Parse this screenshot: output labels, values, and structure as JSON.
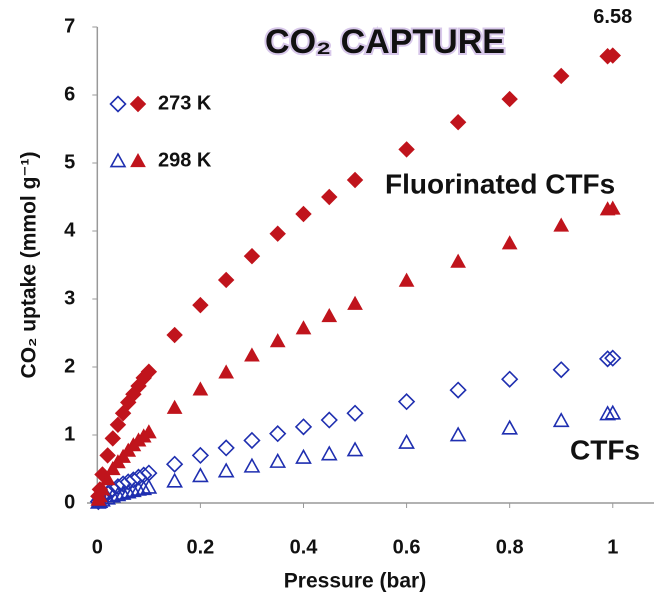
{
  "chart_data": {
    "type": "scatter",
    "title": "CO₂ CAPTURE",
    "title_color": "#7030a0",
    "xlabel": "Pressure (bar)",
    "ylabel": "CO₂ uptake (mmol g⁻¹)",
    "xlim": [
      -0.02,
      1.08
    ],
    "ylim": [
      0,
      7
    ],
    "xticks": [
      0,
      0.2,
      0.4,
      0.6,
      0.8,
      1
    ],
    "yticks": [
      0,
      1,
      2,
      3,
      4,
      5,
      6,
      7
    ],
    "legend": "upper left",
    "x": [
      0.002,
      0.005,
      0.01,
      0.02,
      0.03,
      0.04,
      0.05,
      0.06,
      0.07,
      0.08,
      0.09,
      0.1,
      0.15,
      0.2,
      0.25,
      0.3,
      0.35,
      0.4,
      0.45,
      0.5,
      0.6,
      0.7,
      0.8,
      0.9,
      0.99,
      1.0
    ],
    "series": [
      {
        "name": "273 K",
        "marker": "diamond",
        "sets": [
          {
            "color": "#1f2fb0",
            "filled": false,
            "values": [
              0.02,
              0.05,
              0.08,
              0.14,
              0.2,
              0.24,
              0.28,
              0.31,
              0.34,
              0.38,
              0.41,
              0.44,
              0.57,
              0.7,
              0.81,
              0.92,
              1.02,
              1.12,
              1.22,
              1.32,
              1.49,
              1.66,
              1.82,
              1.96,
              2.12,
              2.13
            ]
          },
          {
            "color": "#c0141c",
            "filled": true,
            "values": [
              0.1,
              0.2,
              0.42,
              0.7,
              0.95,
              1.15,
              1.32,
              1.48,
              1.6,
              1.72,
              1.84,
              1.93,
              2.47,
              2.91,
              3.28,
              3.63,
              3.96,
              4.25,
              4.5,
              4.75,
              5.2,
              5.6,
              5.94,
              6.28,
              6.57,
              6.58
            ]
          }
        ]
      },
      {
        "name": "298 K",
        "marker": "triangle",
        "sets": [
          {
            "color": "#1f2fb0",
            "filled": false,
            "values": [
              0.01,
              0.02,
              0.04,
              0.07,
              0.1,
              0.12,
              0.14,
              0.16,
              0.18,
              0.2,
              0.21,
              0.23,
              0.32,
              0.4,
              0.47,
              0.54,
              0.61,
              0.67,
              0.72,
              0.78,
              0.89,
              1.0,
              1.1,
              1.21,
              1.31,
              1.32
            ]
          },
          {
            "color": "#c0141c",
            "filled": true,
            "values": [
              0.05,
              0.1,
              0.2,
              0.35,
              0.5,
              0.6,
              0.68,
              0.77,
              0.85,
              0.92,
              0.98,
              1.04,
              1.4,
              1.67,
              1.92,
              2.17,
              2.38,
              2.57,
              2.75,
              2.93,
              3.27,
              3.55,
              3.82,
              4.08,
              4.32,
              4.33
            ]
          }
        ]
      }
    ],
    "annotations": [
      {
        "text": "Fluorinated CTFs",
        "color": "#c0141c"
      },
      {
        "text": "CTFs",
        "color": "#1f2fb0"
      }
    ]
  }
}
